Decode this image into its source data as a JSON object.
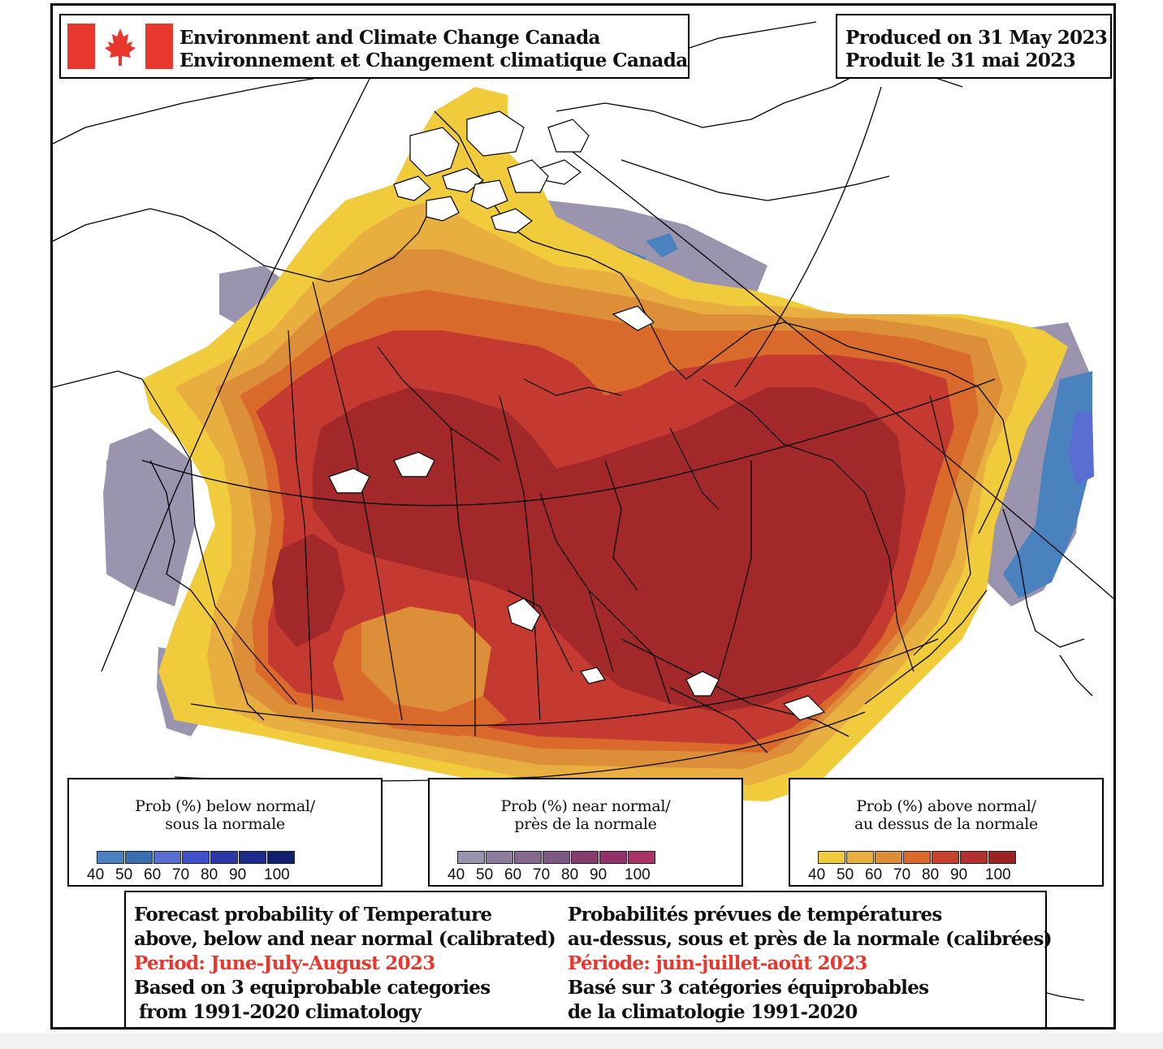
{
  "header": {
    "agency_en": "Environment and Climate Change Canada",
    "agency_fr": "Environnement et Changement climatique Canada",
    "produced_en": "Produced on 31 May 2023",
    "produced_fr": "Produit le 31 mai 2023"
  },
  "legends": {
    "below": {
      "title_line1": "Prob (%) below normal/",
      "title_line2": "sous la normale",
      "colors": [
        "#4a82c0",
        "#3a6fae",
        "#5a6dd0",
        "#4050c8",
        "#2c3aa8",
        "#1d2c8c",
        "#101f6e"
      ],
      "ticks": [
        "40",
        "50",
        "60",
        "70",
        "80",
        "90",
        "100"
      ]
    },
    "near": {
      "title_line1": "Prob (%) near normal/",
      "title_line2": "près de la normale",
      "colors": [
        "#9a94ae",
        "#8c7c9e",
        "#86688e",
        "#7c5882",
        "#843d6c",
        "#92306a",
        "#a83468"
      ],
      "ticks": [
        "40",
        "50",
        "60",
        "70",
        "80",
        "90",
        "100"
      ]
    },
    "above": {
      "title_line1": "Prob (%) above normal/",
      "title_line2": "au dessus de la normale",
      "colors": [
        "#f0cc3c",
        "#e8ae40",
        "#dc8e38",
        "#d96a2c",
        "#c8402e",
        "#b43030",
        "#9a2424"
      ],
      "ticks": [
        "40",
        "50",
        "60",
        "70",
        "80",
        "90",
        "100"
      ]
    }
  },
  "info": {
    "en_line1": "Forecast probability of Temperature",
    "en_line2": "above, below and near normal (calibrated)",
    "en_period": "Period: June-July-August 2023",
    "en_line4": "Based on 3 equiprobable categories",
    "en_line5": "from 1991-2020 climatology",
    "fr_line1": "Probabilités prévues de températures",
    "fr_line2": "au-dessus, sous et près de la normale (calibrées)",
    "fr_period": "Période: juin-juillet-août 2023",
    "fr_line4": "Basé sur 3 catégories équiprobables",
    "fr_line5": "de la climatologie 1991-2020"
  },
  "map_colors": {
    "above_40": "#f0cc3c",
    "above_50": "#e8ae40",
    "above_60": "#dc8e38",
    "above_70": "#d96a2c",
    "above_80": "#c43a30",
    "above_90": "#a2282a",
    "near_40": "#9a94ae",
    "below_40": "#4a82c0",
    "below_60": "#5a6dd0"
  }
}
